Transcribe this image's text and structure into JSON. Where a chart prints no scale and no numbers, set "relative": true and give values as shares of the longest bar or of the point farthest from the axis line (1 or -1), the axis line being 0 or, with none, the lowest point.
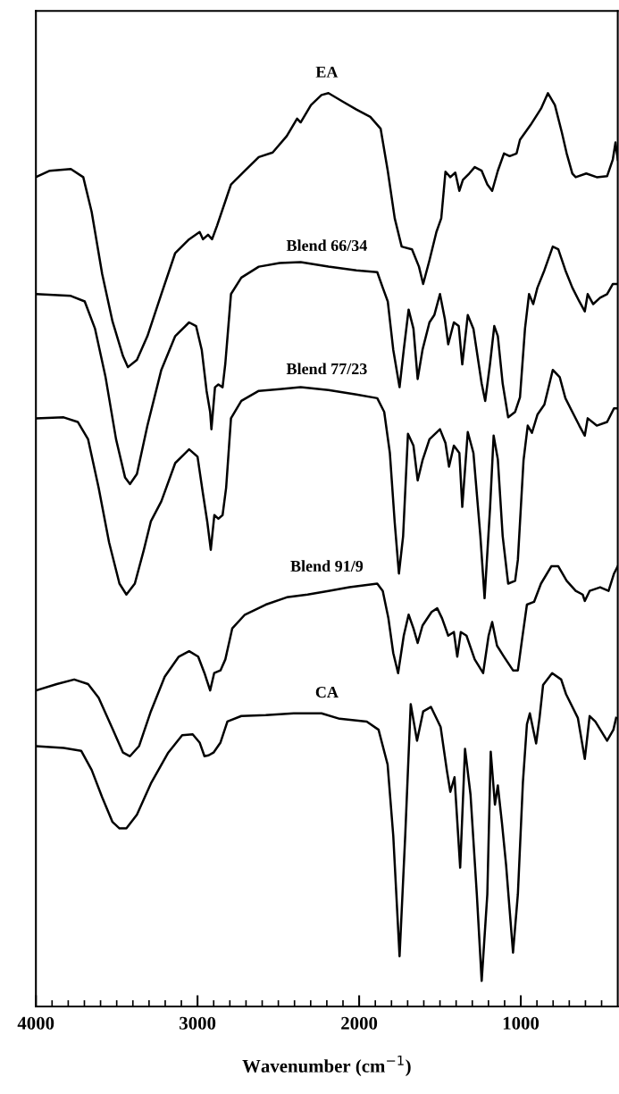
{
  "chart_data": {
    "type": "line",
    "relative": true,
    "xlabel": "Wavenumber (cm$^{−1}$)",
    "xlim": [
      4000,
      400
    ],
    "xticks": [
      4000,
      {
        "value": 3900,
        "label": null
      },
      {
        "value": 3800,
        "label": null
      },
      {
        "value": 3700,
        "label": null
      },
      {
        "value": 3600,
        "label": null
      },
      {
        "value": 3500,
        "label": null
      },
      {
        "value": 3400,
        "label": null
      },
      {
        "value": 3300,
        "label": null
      },
      {
        "value": 3200,
        "label": null
      },
      {
        "value": 3100,
        "label": null
      },
      3000,
      {
        "value": 2900,
        "label": null
      },
      {
        "value": 2800,
        "label": null
      },
      {
        "value": 2700,
        "label": null
      },
      {
        "value": 2600,
        "label": null
      },
      {
        "value": 2500,
        "label": null
      },
      {
        "value": 2400,
        "label": null
      },
      {
        "value": 2300,
        "label": null
      },
      {
        "value": 2200,
        "label": null
      },
      {
        "value": 2100,
        "label": null
      },
      2000,
      {
        "value": 1900,
        "label": null
      },
      {
        "value": 1800,
        "label": null
      },
      {
        "value": 1700,
        "label": null
      },
      {
        "value": 1600,
        "label": null
      },
      {
        "value": 1500,
        "label": null
      },
      {
        "value": 1400,
        "label": null
      },
      {
        "value": 1300,
        "label": null
      },
      {
        "value": 1200,
        "label": null
      },
      {
        "value": 1100,
        "label": null
      },
      1000,
      {
        "value": 900,
        "label": null
      },
      {
        "value": 800,
        "label": null
      },
      {
        "value": 700,
        "label": null
      },
      {
        "value": 600,
        "label": null
      },
      {
        "value": 500,
        "label": null
      }
    ],
    "tick_labels": "x",
    "grid": false,
    "legend": false,
    "marker": "none",
    "line_style": "solid",
    "series": [
      {
        "name": "EA",
        "color": "#000000",
        "x": [
          4000,
          3914,
          3784,
          3707,
          3655,
          3590,
          3526,
          3461,
          3431,
          3375,
          3310,
          3224,
          3138,
          3052,
          2987,
          2966,
          2935,
          2910,
          2879,
          2793,
          2707,
          2621,
          2535,
          2448,
          2384,
          2362,
          2298,
          2233,
          2190,
          2104,
          2017,
          1931,
          1867,
          1823,
          1780,
          1737,
          1673,
          1630,
          1604,
          1565,
          1522,
          1492,
          1466,
          1436,
          1405,
          1380,
          1358,
          1319,
          1285,
          1242,
          1207,
          1177,
          1142,
          1104,
          1069,
          1026,
          1005,
          940,
          875,
          832,
          789,
          746,
          716,
          681,
          660,
          595,
          530,
          466,
          431,
          414,
          400
        ],
        "values": [
          0.908,
          0.915,
          0.917,
          0.908,
          0.87,
          0.802,
          0.75,
          0.712,
          0.7,
          0.708,
          0.734,
          0.78,
          0.825,
          0.84,
          0.848,
          0.84,
          0.845,
          0.84,
          0.855,
          0.9,
          0.915,
          0.93,
          0.935,
          0.953,
          0.972,
          0.968,
          0.987,
          0.998,
          1.0,
          0.991,
          0.982,
          0.974,
          0.961,
          0.915,
          0.863,
          0.832,
          0.829,
          0.81,
          0.791,
          0.817,
          0.848,
          0.863,
          0.914,
          0.908,
          0.913,
          0.893,
          0.905,
          0.912,
          0.919,
          0.915,
          0.9,
          0.893,
          0.915,
          0.934,
          0.931,
          0.934,
          0.949,
          0.965,
          0.983,
          1.0,
          0.987,
          0.957,
          0.934,
          0.912,
          0.908,
          0.912,
          0.908,
          0.909,
          0.927,
          0.946,
          0.927
        ]
      },
      {
        "name": "Blend 66/34",
        "color": "#000000",
        "x": [
          4000,
          3784,
          3698,
          3634,
          3569,
          3504,
          3448,
          3418,
          3375,
          3310,
          3224,
          3138,
          3052,
          3009,
          2974,
          2944,
          2922,
          2914,
          2892,
          2871,
          2845,
          2828,
          2793,
          2729,
          2621,
          2492,
          2362,
          2190,
          2017,
          1888,
          1854,
          1823,
          1789,
          1750,
          1724,
          1694,
          1664,
          1638,
          1608,
          1565,
          1535,
          1500,
          1470,
          1449,
          1414,
          1384,
          1362,
          1328,
          1293,
          1242,
          1220,
          1190,
          1164,
          1142,
          1112,
          1078,
          1035,
          1005,
          974,
          949,
          923,
          897,
          854,
          802,
          768,
          724,
          681,
          638,
          604,
          586,
          552,
          509,
          466,
          431,
          400
        ],
        "values": [
          0.78,
          0.778,
          0.772,
          0.742,
          0.689,
          0.621,
          0.579,
          0.572,
          0.583,
          0.636,
          0.697,
          0.734,
          0.749,
          0.745,
          0.719,
          0.674,
          0.651,
          0.632,
          0.678,
          0.681,
          0.678,
          0.704,
          0.78,
          0.798,
          0.81,
          0.814,
          0.815,
          0.81,
          0.806,
          0.804,
          0.787,
          0.772,
          0.719,
          0.678,
          0.719,
          0.763,
          0.742,
          0.687,
          0.719,
          0.749,
          0.757,
          0.78,
          0.753,
          0.725,
          0.749,
          0.745,
          0.703,
          0.757,
          0.742,
          0.682,
          0.663,
          0.704,
          0.745,
          0.734,
          0.682,
          0.645,
          0.651,
          0.667,
          0.742,
          0.78,
          0.769,
          0.787,
          0.806,
          0.832,
          0.829,
          0.806,
          0.787,
          0.772,
          0.761,
          0.78,
          0.769,
          0.776,
          0.78,
          0.791,
          0.791
        ]
      },
      {
        "name": "Blend 77/23",
        "color": "#000000",
        "x": [
          4000,
          3828,
          3741,
          3677,
          3612,
          3547,
          3483,
          3440,
          3388,
          3332,
          3289,
          3224,
          3138,
          3052,
          3000,
          2966,
          2940,
          2918,
          2896,
          2871,
          2845,
          2823,
          2793,
          2729,
          2621,
          2492,
          2362,
          2190,
          2017,
          1888,
          1845,
          1810,
          1780,
          1754,
          1728,
          1698,
          1664,
          1638,
          1608,
          1565,
          1500,
          1466,
          1444,
          1414,
          1380,
          1362,
          1328,
          1293,
          1250,
          1224,
          1190,
          1168,
          1142,
          1112,
          1078,
          1035,
          1018,
          983,
          957,
          931,
          897,
          854,
          802,
          759,
          724,
          681,
          638,
          604,
          586,
          530,
          466,
          423,
          400
        ],
        "values": [
          0.644,
          0.645,
          0.64,
          0.621,
          0.568,
          0.508,
          0.463,
          0.451,
          0.463,
          0.5,
          0.531,
          0.553,
          0.595,
          0.61,
          0.602,
          0.561,
          0.531,
          0.5,
          0.538,
          0.534,
          0.538,
          0.568,
          0.644,
          0.663,
          0.674,
          0.676,
          0.678,
          0.675,
          0.67,
          0.666,
          0.651,
          0.606,
          0.53,
          0.474,
          0.515,
          0.627,
          0.614,
          0.576,
          0.598,
          0.621,
          0.632,
          0.617,
          0.591,
          0.614,
          0.606,
          0.547,
          0.629,
          0.606,
          0.515,
          0.447,
          0.546,
          0.625,
          0.599,
          0.515,
          0.463,
          0.466,
          0.489,
          0.598,
          0.636,
          0.628,
          0.648,
          0.659,
          0.697,
          0.689,
          0.666,
          0.651,
          0.636,
          0.625,
          0.644,
          0.636,
          0.64,
          0.655,
          0.655
        ]
      },
      {
        "name": "Blend 91/9",
        "color": "#000000",
        "x": [
          4000,
          3871,
          3763,
          3677,
          3612,
          3526,
          3461,
          3418,
          3362,
          3289,
          3203,
          3116,
          3052,
          2996,
          2957,
          2922,
          2897,
          2858,
          2828,
          2785,
          2707,
          2578,
          2448,
          2319,
          2190,
          2060,
          1931,
          1888,
          1854,
          1819,
          1789,
          1759,
          1724,
          1694,
          1664,
          1638,
          1608,
          1552,
          1517,
          1487,
          1449,
          1414,
          1393,
          1371,
          1336,
          1285,
          1233,
          1199,
          1177,
          1147,
          1104,
          1048,
          1018,
          992,
          962,
          918,
          875,
          811,
          768,
          716,
          660,
          617,
          604,
          574,
          509,
          457,
          423,
          400
        ],
        "values": [
          0.346,
          0.353,
          0.358,
          0.353,
          0.338,
          0.304,
          0.278,
          0.274,
          0.285,
          0.323,
          0.361,
          0.383,
          0.389,
          0.383,
          0.365,
          0.346,
          0.365,
          0.368,
          0.38,
          0.414,
          0.429,
          0.44,
          0.448,
          0.451,
          0.455,
          0.459,
          0.462,
          0.463,
          0.455,
          0.425,
          0.387,
          0.365,
          0.406,
          0.429,
          0.414,
          0.398,
          0.417,
          0.432,
          0.436,
          0.425,
          0.406,
          0.41,
          0.383,
          0.41,
          0.406,
          0.38,
          0.365,
          0.406,
          0.421,
          0.395,
          0.383,
          0.368,
          0.368,
          0.402,
          0.44,
          0.443,
          0.463,
          0.482,
          0.482,
          0.466,
          0.455,
          0.451,
          0.444,
          0.455,
          0.459,
          0.455,
          0.474,
          0.482
        ]
      },
      {
        "name": "CA",
        "color": "#000000",
        "x": [
          4000,
          3828,
          3720,
          3655,
          3590,
          3526,
          3483,
          3440,
          3375,
          3289,
          3181,
          3095,
          3030,
          2987,
          2957,
          2931,
          2901,
          2858,
          2815,
          2729,
          2578,
          2405,
          2233,
          2121,
          1953,
          1880,
          1824,
          1789,
          1750,
          1715,
          1681,
          1642,
          1604,
          1556,
          1496,
          1457,
          1436,
          1410,
          1375,
          1345,
          1311,
          1272,
          1242,
          1207,
          1186,
          1160,
          1142,
          1116,
          1091,
          1048,
          1018,
          987,
          962,
          944,
          905,
          884,
          862,
          806,
          750,
          720,
          647,
          604,
          574,
          539,
          466,
          427,
          410
        ],
        "values": [
          0.285,
          0.283,
          0.28,
          0.259,
          0.229,
          0.202,
          0.195,
          0.195,
          0.21,
          0.244,
          0.278,
          0.297,
          0.298,
          0.289,
          0.274,
          0.275,
          0.278,
          0.289,
          0.312,
          0.318,
          0.319,
          0.321,
          0.321,
          0.315,
          0.312,
          0.303,
          0.265,
          0.187,
          0.055,
          0.187,
          0.331,
          0.291,
          0.323,
          0.328,
          0.306,
          0.258,
          0.235,
          0.251,
          0.152,
          0.282,
          0.232,
          0.123,
          0.028,
          0.123,
          0.279,
          0.221,
          0.242,
          0.2,
          0.155,
          0.059,
          0.123,
          0.245,
          0.309,
          0.321,
          0.288,
          0.316,
          0.352,
          0.365,
          0.358,
          0.342,
          0.316,
          0.271,
          0.318,
          0.312,
          0.291,
          0.303,
          0.316
        ]
      }
    ]
  }
}
